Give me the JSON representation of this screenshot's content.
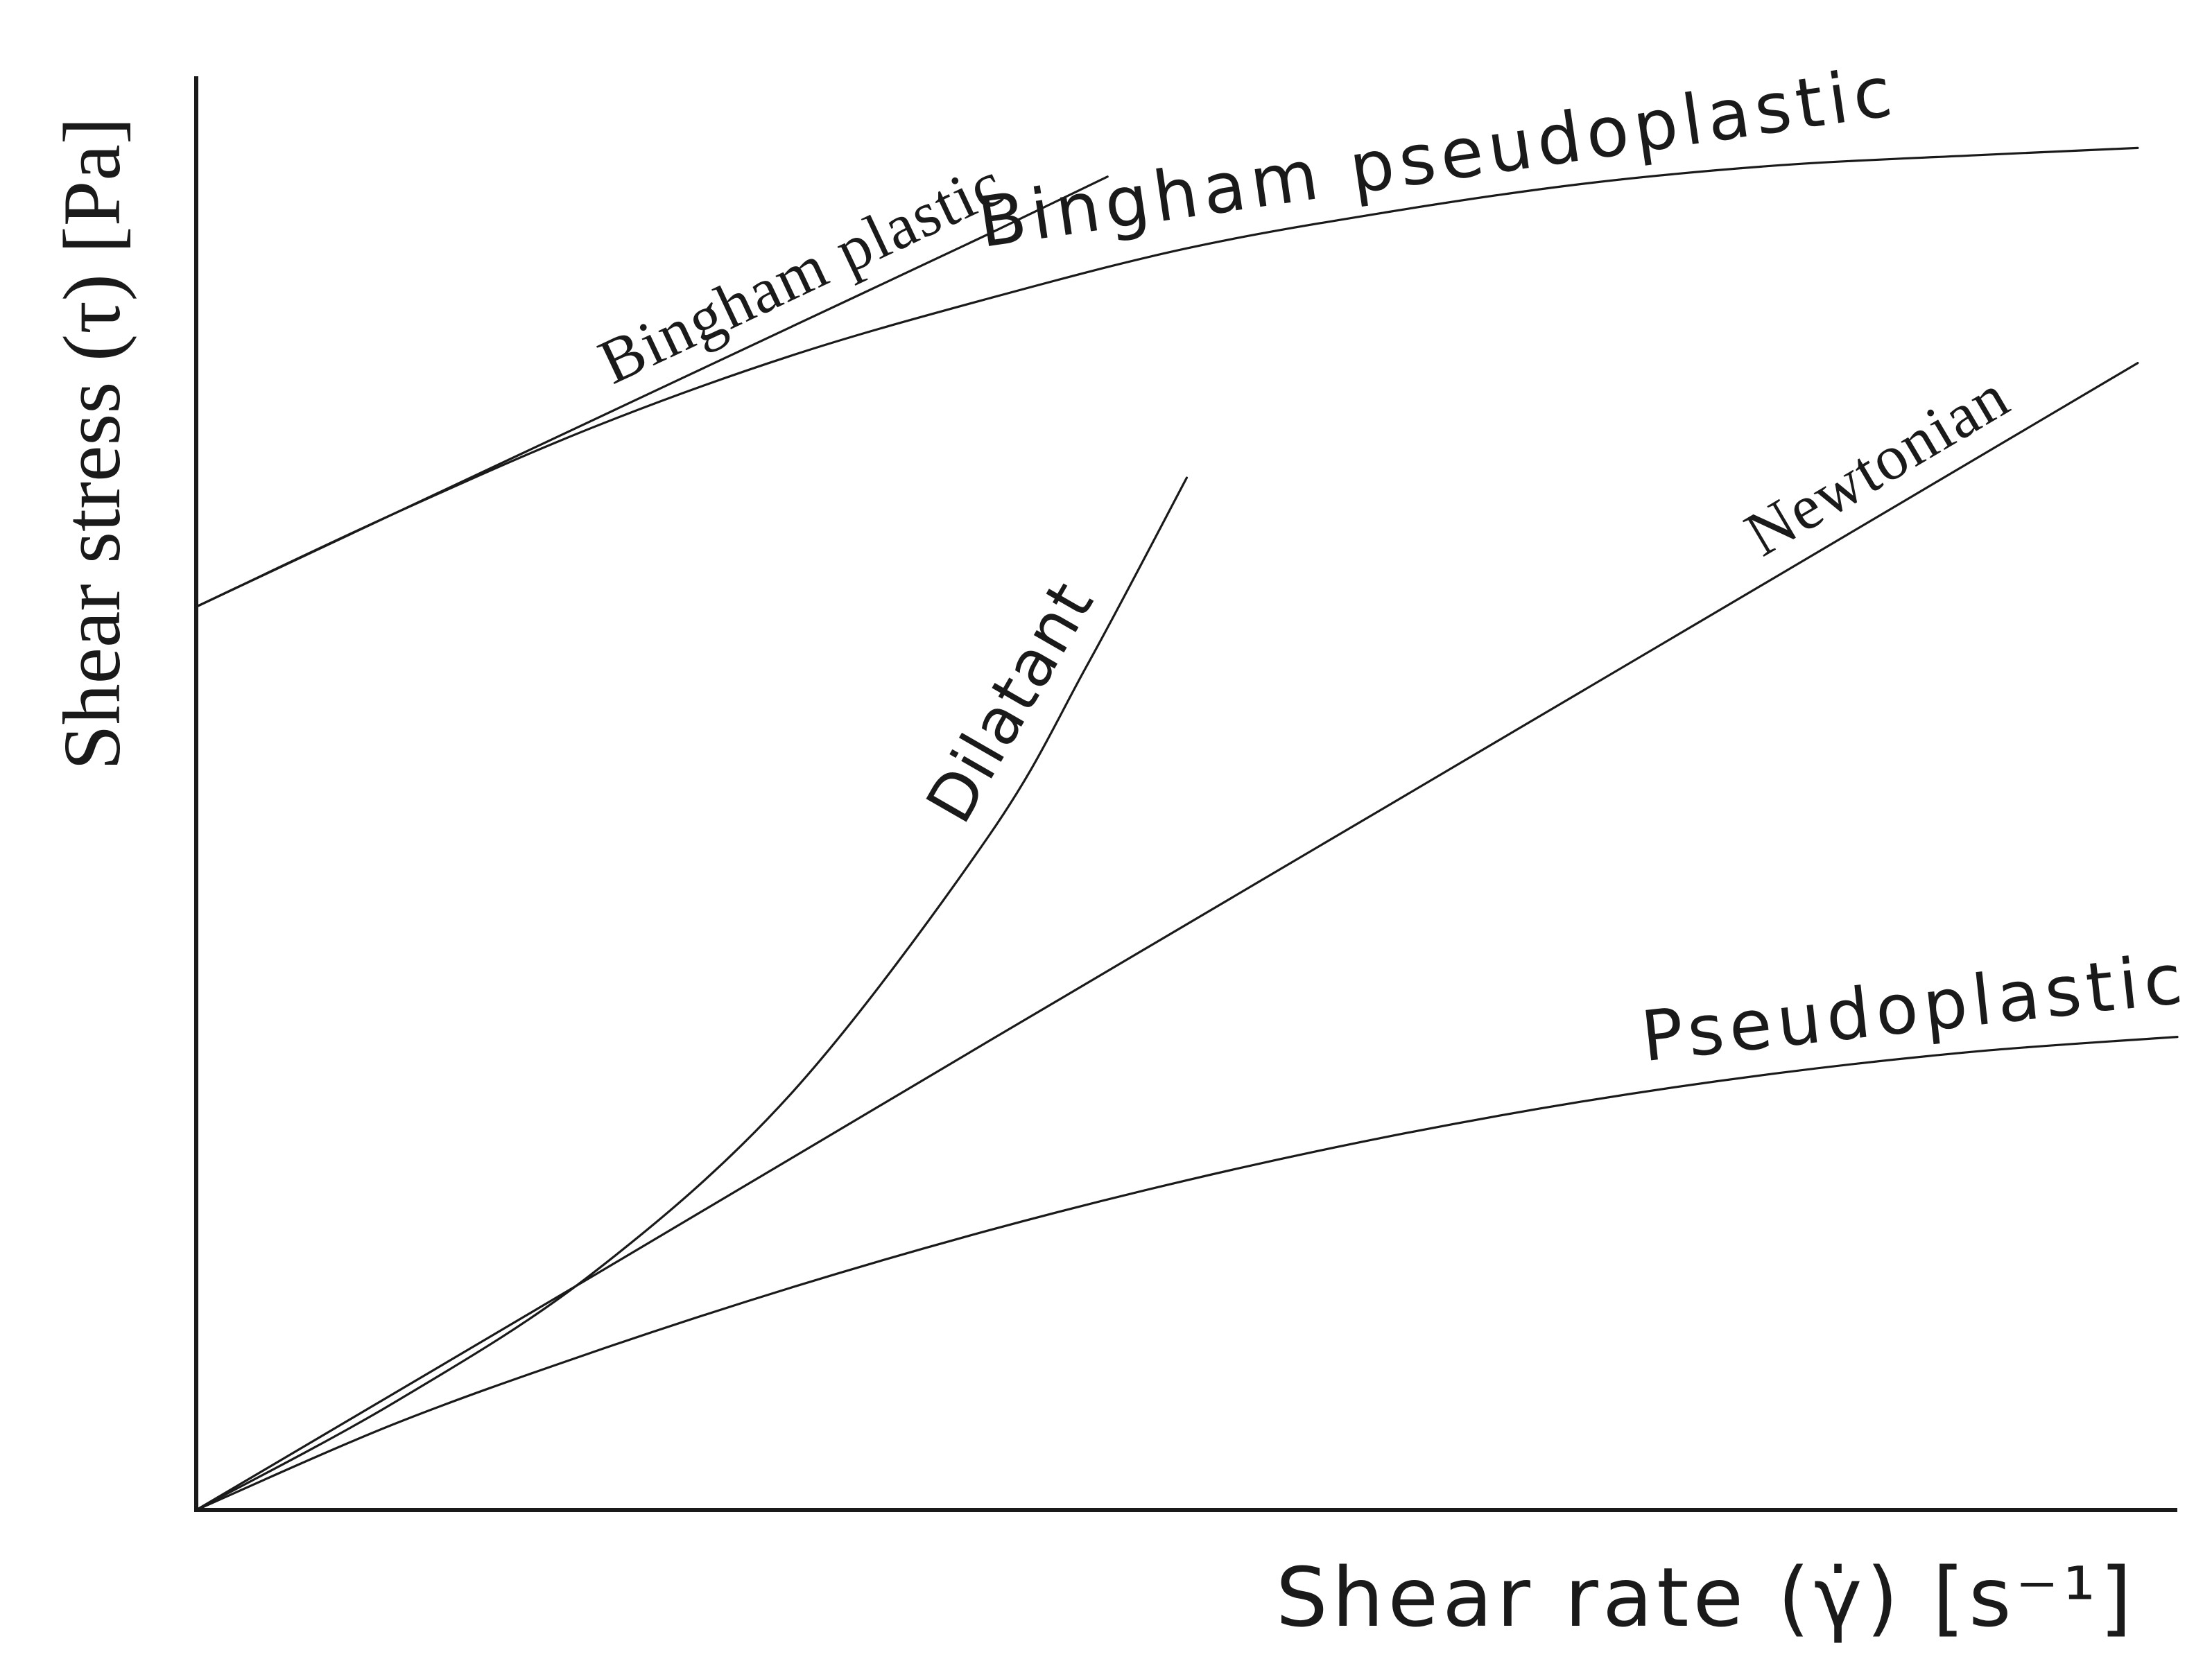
{
  "chart_data": {
    "type": "line",
    "title": "",
    "xlabel": "Shear rate (γ̇) [s⁻¹]",
    "ylabel": "Shear stress (τ) [Pa]",
    "xlim": [
      0,
      10
    ],
    "ylim": [
      0,
      10
    ],
    "grid": false,
    "legend": "none",
    "line_color": "#1a1a1a",
    "series": [
      {
        "name": "Bingham plastic",
        "x": [
          0,
          1,
          2,
          3,
          4,
          4.6
        ],
        "y": [
          6.3,
          6.95,
          7.6,
          8.25,
          8.9,
          9.3
        ]
      },
      {
        "name": "Bingham pseudoplastic",
        "x": [
          0,
          1,
          2,
          3,
          4,
          5,
          6,
          7,
          8,
          9,
          9.8
        ],
        "y": [
          6.3,
          6.95,
          7.55,
          8.05,
          8.45,
          8.8,
          9.05,
          9.25,
          9.38,
          9.45,
          9.5
        ]
      },
      {
        "name": "Dilatant",
        "x": [
          0,
          1,
          2,
          3,
          4,
          4.5,
          5
        ],
        "y": [
          0,
          0.75,
          1.65,
          2.9,
          4.7,
          5.9,
          7.2
        ]
      },
      {
        "name": "Newtonian",
        "x": [
          0,
          2,
          4,
          6,
          8,
          9.8
        ],
        "y": [
          0,
          1.63,
          3.27,
          4.9,
          6.53,
          8.0
        ]
      },
      {
        "name": "Pseudoplastic",
        "x": [
          0,
          1,
          2,
          3,
          4,
          5,
          6,
          7,
          8,
          9,
          10
        ],
        "y": [
          0,
          0.6,
          1.1,
          1.55,
          1.95,
          2.3,
          2.6,
          2.85,
          3.05,
          3.2,
          3.3
        ]
      }
    ]
  }
}
